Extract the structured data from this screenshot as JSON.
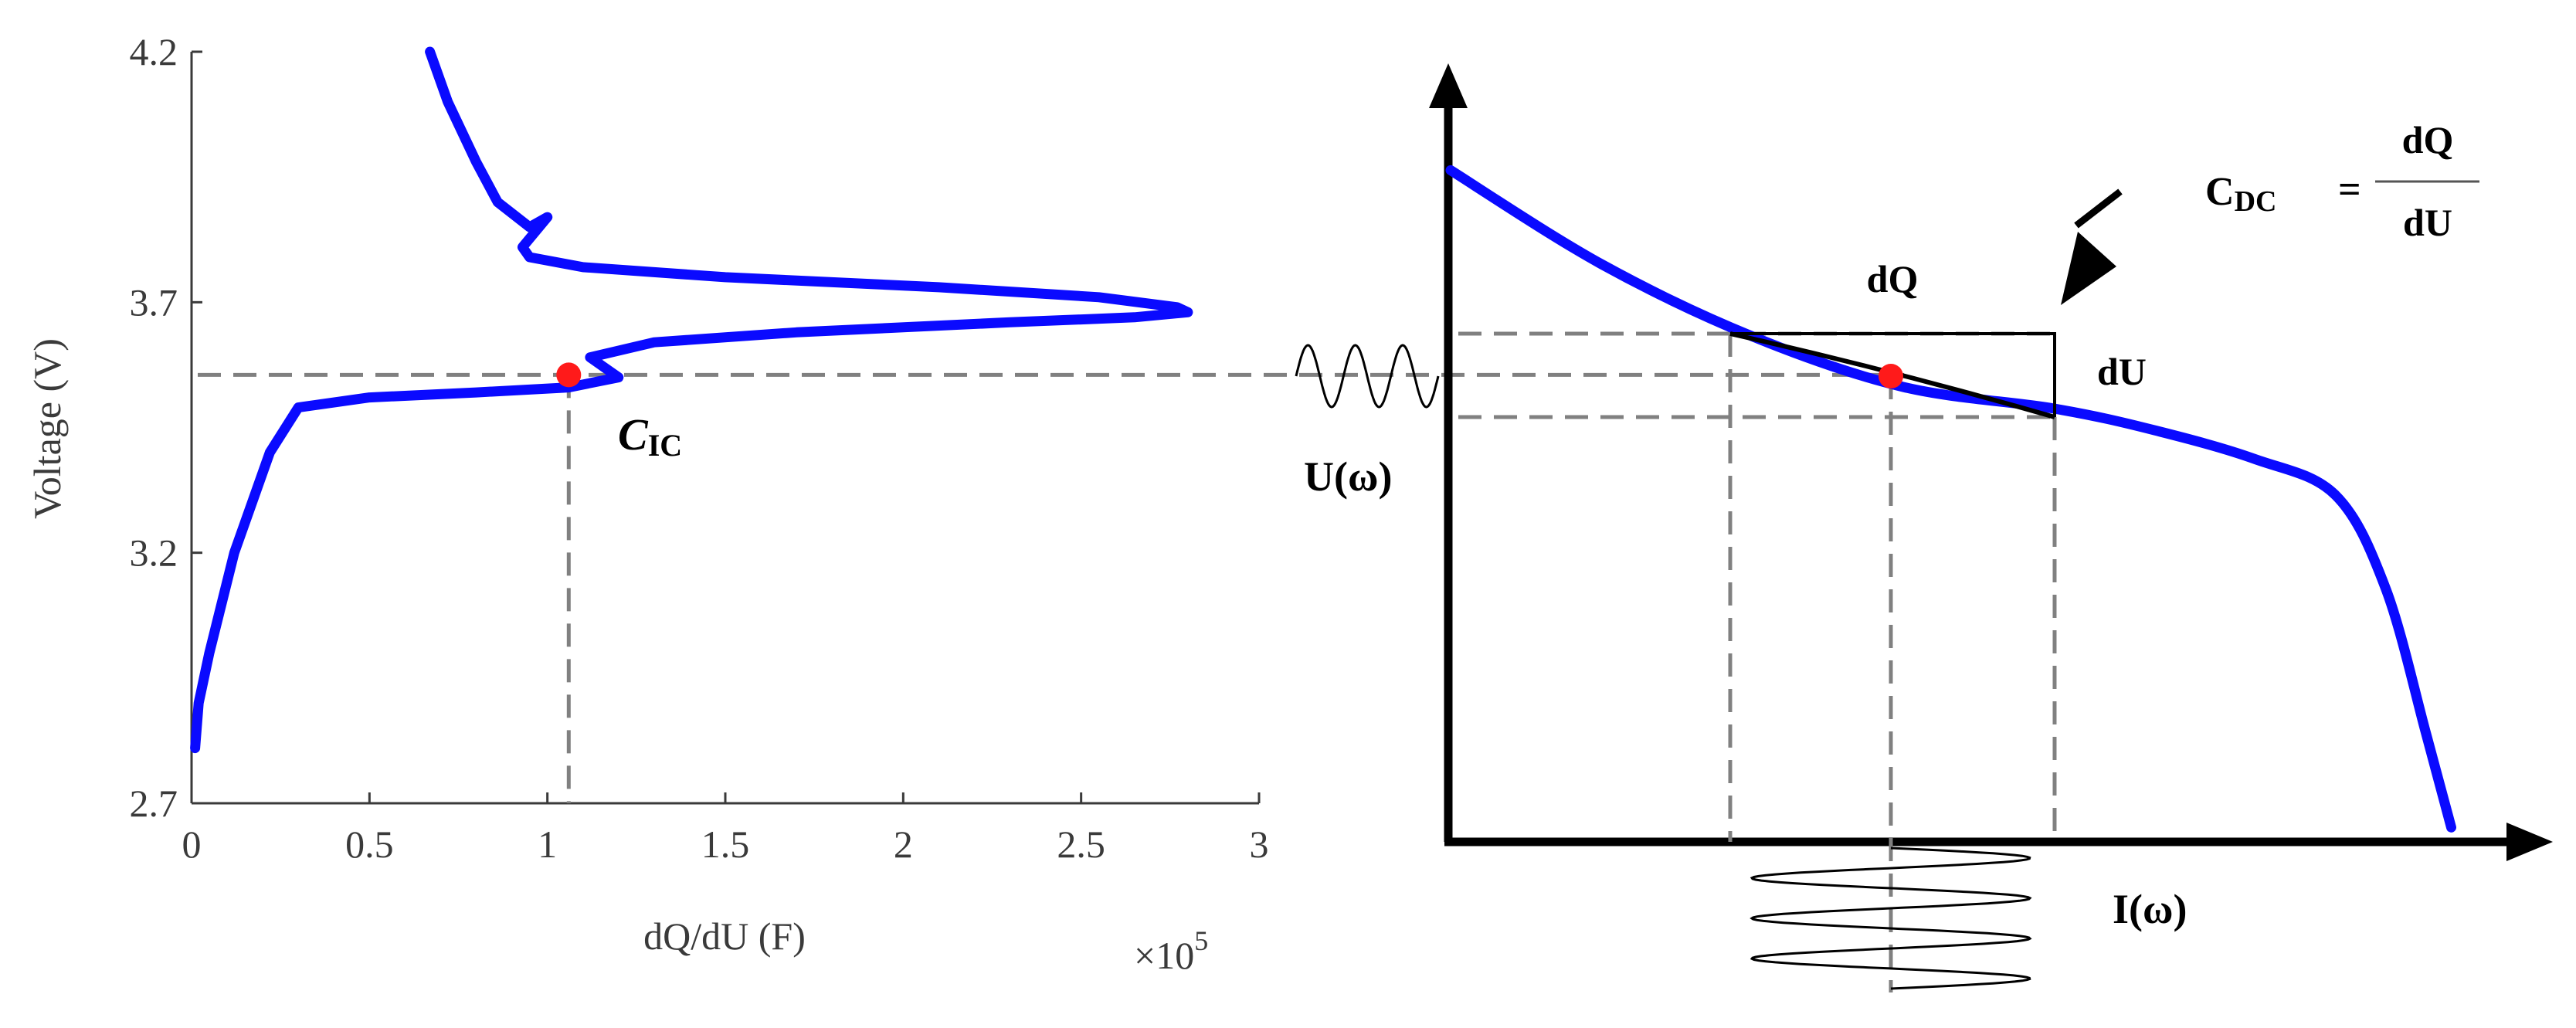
{
  "colors": {
    "curve": "#0a0aff",
    "marker": "#ff1a1a",
    "guide": "#808080",
    "axis": "#000000",
    "text": "#3a3a3a"
  },
  "chart_data": [
    {
      "type": "line",
      "xlabel": "dQ/dU (F)",
      "ylabel": "Voltage (V)",
      "x_multiplier_label": "×10",
      "x_multiplier_exponent": "5",
      "xlim": [
        0,
        3
      ],
      "ylim": [
        2.7,
        4.2
      ],
      "x_ticks": [
        "0",
        "0.5",
        "1",
        "1.5",
        "2",
        "2.5",
        "3"
      ],
      "y_ticks": [
        "2.7",
        "3.2",
        "3.7",
        "4.2"
      ],
      "series": [
        {
          "x": [
            0.67,
            0.72,
            0.8,
            0.86,
            0.95,
            1.0,
            0.93,
            0.95,
            1.1,
            1.5,
            2.1,
            2.55,
            2.77,
            2.8,
            2.65,
            2.3,
            1.7,
            1.3,
            1.12,
            1.16,
            1.2,
            1.06,
            0.8,
            0.5,
            0.3,
            0.22,
            0.12,
            0.05,
            0.02,
            0.01
          ],
          "y": [
            4.2,
            4.1,
            3.98,
            3.9,
            3.85,
            3.87,
            3.81,
            3.79,
            3.77,
            3.75,
            3.73,
            3.71,
            3.69,
            3.68,
            3.67,
            3.66,
            3.64,
            3.62,
            3.59,
            3.57,
            3.55,
            3.53,
            3.52,
            3.51,
            3.49,
            3.4,
            3.2,
            3.0,
            2.9,
            2.81
          ]
        }
      ],
      "marker": {
        "x": 1.06,
        "y": 3.555,
        "label": "C",
        "label_sub": "IC"
      },
      "grid": false
    },
    {
      "type": "line",
      "series": [
        {
          "x": [
            0.0,
            0.15,
            0.3,
            0.45,
            0.6,
            0.7,
            0.8,
            0.88,
            0.93,
            0.97,
            0.995
          ],
          "y": [
            0.93,
            0.8,
            0.7,
            0.63,
            0.6,
            0.57,
            0.53,
            0.48,
            0.35,
            0.15,
            0.02
          ]
        }
      ],
      "x_axis_label": "I(ω)",
      "y_axis_label": "U(ω)",
      "marker_label": "",
      "tangent_labels": {
        "dq": "dQ",
        "du": "dU"
      },
      "formula": {
        "lhs": "C",
        "lhs_sub": "DC",
        "eq": "=",
        "num": "dQ",
        "den": "dU"
      }
    }
  ]
}
